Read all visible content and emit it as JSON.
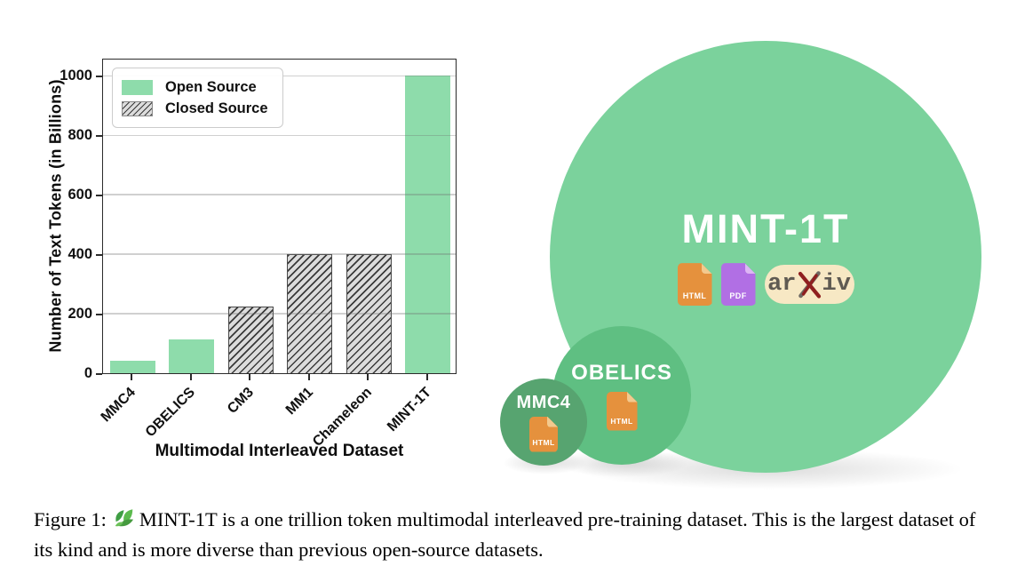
{
  "chart_data": {
    "type": "bar",
    "title": "",
    "xlabel": "Multimodal Interleaved Dataset",
    "ylabel": "Number of Text Tokens (in Billions)",
    "categories": [
      "MMC4",
      "OBELICS",
      "CM3",
      "MM1",
      "Chameleon",
      "MINT-1T"
    ],
    "values": [
      43,
      115,
      225,
      400,
      400,
      1000
    ],
    "source_type": [
      "open",
      "open",
      "closed",
      "closed",
      "closed",
      "open"
    ],
    "yticks": [
      0,
      200,
      400,
      600,
      800,
      1000
    ],
    "ylim": [
      0,
      1060
    ],
    "grid": true,
    "legend_position": "upper-left",
    "legend": [
      {
        "label": "Open Source",
        "style": "open"
      },
      {
        "label": "Closed Source",
        "style": "closed"
      }
    ],
    "colors": {
      "open_source_bar": "#8edcab",
      "closed_source_face": "#dcdcdc",
      "closed_source_hatch": "#3a3a3a"
    }
  },
  "venn": {
    "circles": [
      {
        "name": "MINT-1T",
        "relative_size": "large",
        "color": "#7bd29c",
        "documents": [
          "HTML",
          "PDF",
          "arXiv"
        ]
      },
      {
        "name": "OBELICS",
        "relative_size": "medium",
        "color": "#5fbf82",
        "documents": [
          "HTML"
        ]
      },
      {
        "name": "MMC4",
        "relative_size": "small",
        "color": "#57a470",
        "documents": [
          "HTML"
        ]
      }
    ],
    "doc_icons": {
      "html": {
        "label": "HTML",
        "color": "#e5913d"
      },
      "pdf": {
        "label": "PDF",
        "color": "#b16fe4"
      },
      "arxiv": {
        "prefix": "ar",
        "suffix": "iv",
        "bg": "#f7e8c4",
        "text_color": "#5f5a52",
        "x_color": "#8f1f1f"
      }
    }
  },
  "caption": {
    "prefix": "Figure 1:",
    "body": "MINT-1T is a one trillion token multimodal interleaved pre-training dataset. This is the largest dataset of its kind and is more diverse than previous open-source datasets.",
    "leaf_icon": "mint-leaf"
  }
}
